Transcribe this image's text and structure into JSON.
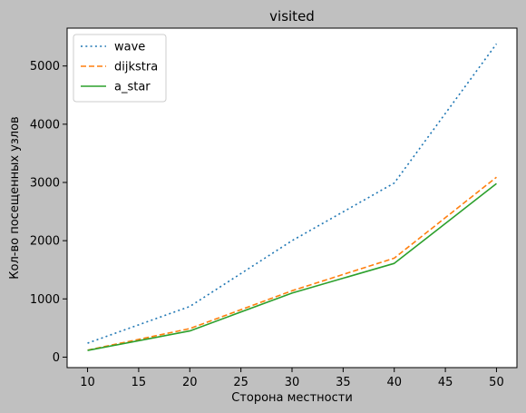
{
  "chart_data": {
    "type": "line",
    "title": "visited",
    "xlabel": "Сторона местности",
    "ylabel": "Кол-во посещенных узлов",
    "xlim": [
      8,
      52
    ],
    "ylim": [
      -180,
      5650
    ],
    "xticks": [
      10,
      15,
      20,
      25,
      30,
      35,
      40,
      45,
      50
    ],
    "yticks": [
      0,
      1000,
      2000,
      3000,
      4000,
      5000
    ],
    "grid": false,
    "legend_position": "top-left",
    "background": "#c0c0c0",
    "plot_background": "#ffffff",
    "x": [
      10,
      20,
      30,
      40,
      50
    ],
    "series": [
      {
        "name": "wave",
        "values": [
          240,
          870,
          2000,
          2990,
          5380
        ],
        "color": "#1f77b4",
        "style": "dotted"
      },
      {
        "name": "dijkstra",
        "values": [
          120,
          490,
          1140,
          1700,
          3090
        ],
        "color": "#ff7f0e",
        "style": "dashed"
      },
      {
        "name": "a_star",
        "values": [
          115,
          450,
          1100,
          1610,
          2980
        ],
        "color": "#2ca02c",
        "style": "solid"
      }
    ]
  }
}
